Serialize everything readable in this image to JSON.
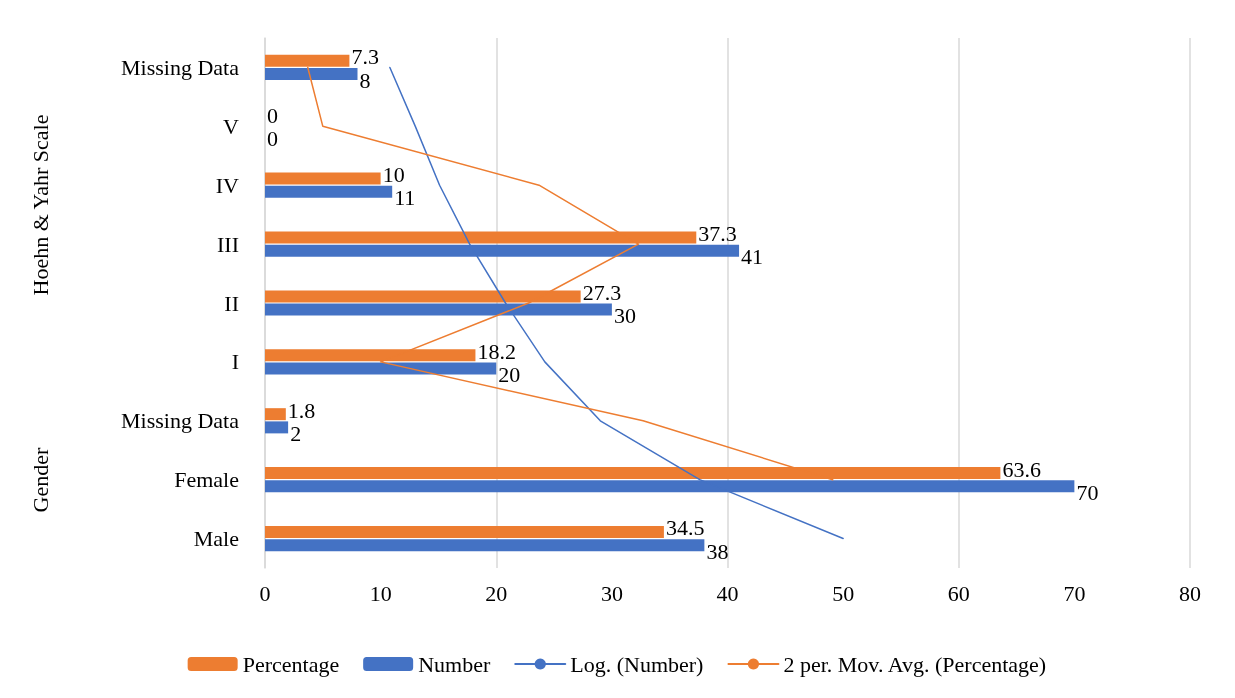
{
  "chart_data": {
    "type": "bar",
    "orientation": "horizontal",
    "categories": [
      "Missing Data",
      "V",
      "IV",
      "III",
      "II",
      "I",
      "Missing Data",
      "Female",
      "Male"
    ],
    "series": [
      {
        "name": "Percentage",
        "color": "#ed7d31",
        "values": [
          7.3,
          0,
          10,
          37.3,
          27.3,
          18.2,
          1.8,
          63.6,
          34.5
        ],
        "value_labels": [
          "7.3",
          "0",
          "10",
          "37.3",
          "27.3",
          "18.2",
          "1.8",
          "63.6",
          "34.5"
        ]
      },
      {
        "name": "Number",
        "color": "#4472c4",
        "values": [
          8,
          0,
          11,
          41,
          30,
          20,
          2,
          70,
          38
        ],
        "value_labels": [
          "8",
          "0",
          "11",
          "41",
          "30",
          "20",
          "2",
          "70",
          "38"
        ]
      },
      {
        "name": "Log. (Number)",
        "type": "line",
        "color": "#4472c4",
        "values": [
          10.8,
          13,
          15.1,
          17.7,
          20.8,
          24.2,
          29,
          37.6,
          50
        ]
      },
      {
        "name": "2 per. Mov. Avg. (Percentage)",
        "type": "line",
        "color": "#ed7d31",
        "values": [
          3.7,
          5,
          23.7,
          32.3,
          22.8,
          10,
          32.7,
          49.1,
          null
        ]
      }
    ],
    "xlim": [
      0,
      80
    ],
    "xticks": [
      0,
      10,
      20,
      30,
      40,
      50,
      60,
      70,
      80
    ],
    "annotations": [
      "Hoehn & Yahr Scale",
      "Gender"
    ],
    "grid": "x",
    "legend": "bottom",
    "line_style": "solid"
  }
}
